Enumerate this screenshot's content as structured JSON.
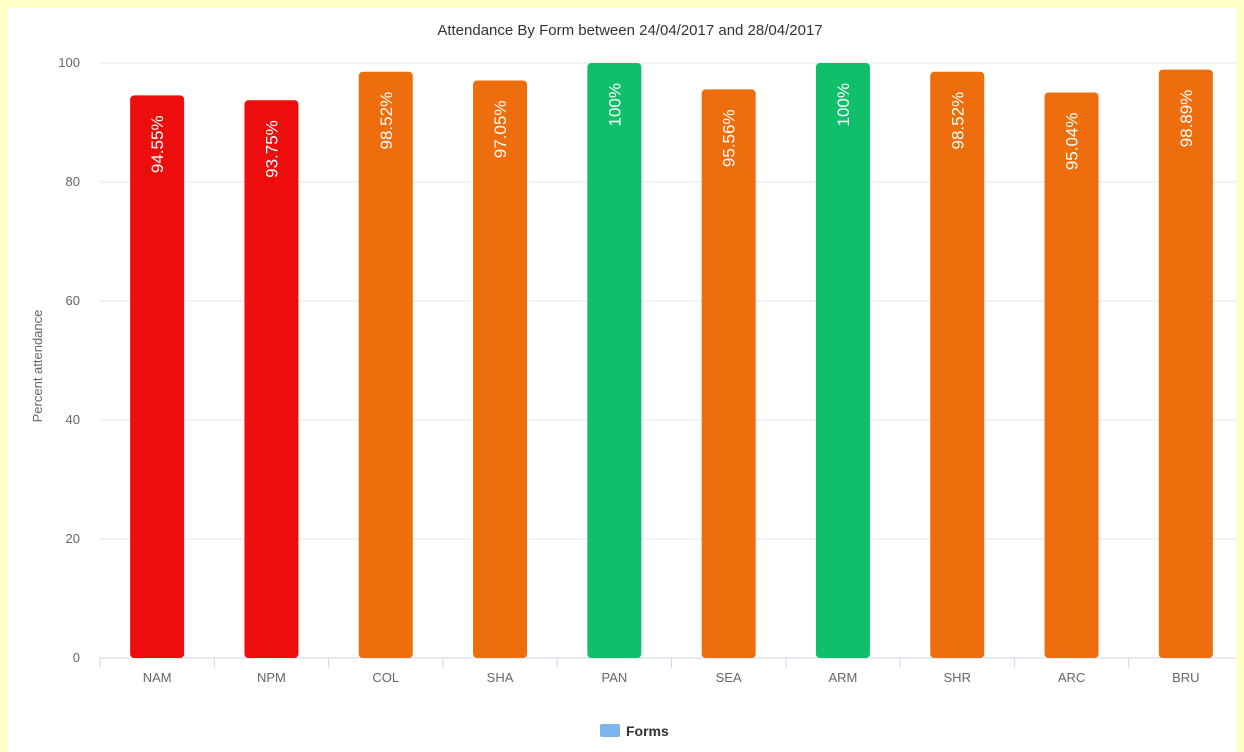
{
  "chart_data": {
    "type": "bar",
    "title": "Attendance By Form between 24/04/2017 and 28/04/2017",
    "xlabel": "",
    "ylabel": "Percent attendance",
    "ylim": [
      0,
      100
    ],
    "yticks": [
      0,
      20,
      40,
      60,
      80,
      100
    ],
    "categories": [
      "NAM",
      "NPM",
      "COL",
      "SHA",
      "PAN",
      "SEA",
      "ARM",
      "SHR",
      "ARC",
      "BRU"
    ],
    "values": [
      94.55,
      93.75,
      98.52,
      97.05,
      100,
      95.56,
      100,
      98.52,
      95.04,
      98.89
    ],
    "data_labels": [
      "94.55%",
      "93.75%",
      "98.52%",
      "97.05%",
      "100%",
      "95.56%",
      "100%",
      "98.52%",
      "95.04%",
      "98.89%"
    ],
    "bar_colors": [
      "#ee0d0d",
      "#ee0d0d",
      "#ee6d0d",
      "#ee6d0d",
      "#0fbf6a",
      "#ee6d0d",
      "#0fbf6a",
      "#ee6d0d",
      "#ee6d0d",
      "#ee6d0d"
    ],
    "grid": true,
    "legend": {
      "position": "bottom-center",
      "entries": [
        {
          "name": "Forms",
          "color": "#7cb5ec"
        }
      ]
    }
  }
}
